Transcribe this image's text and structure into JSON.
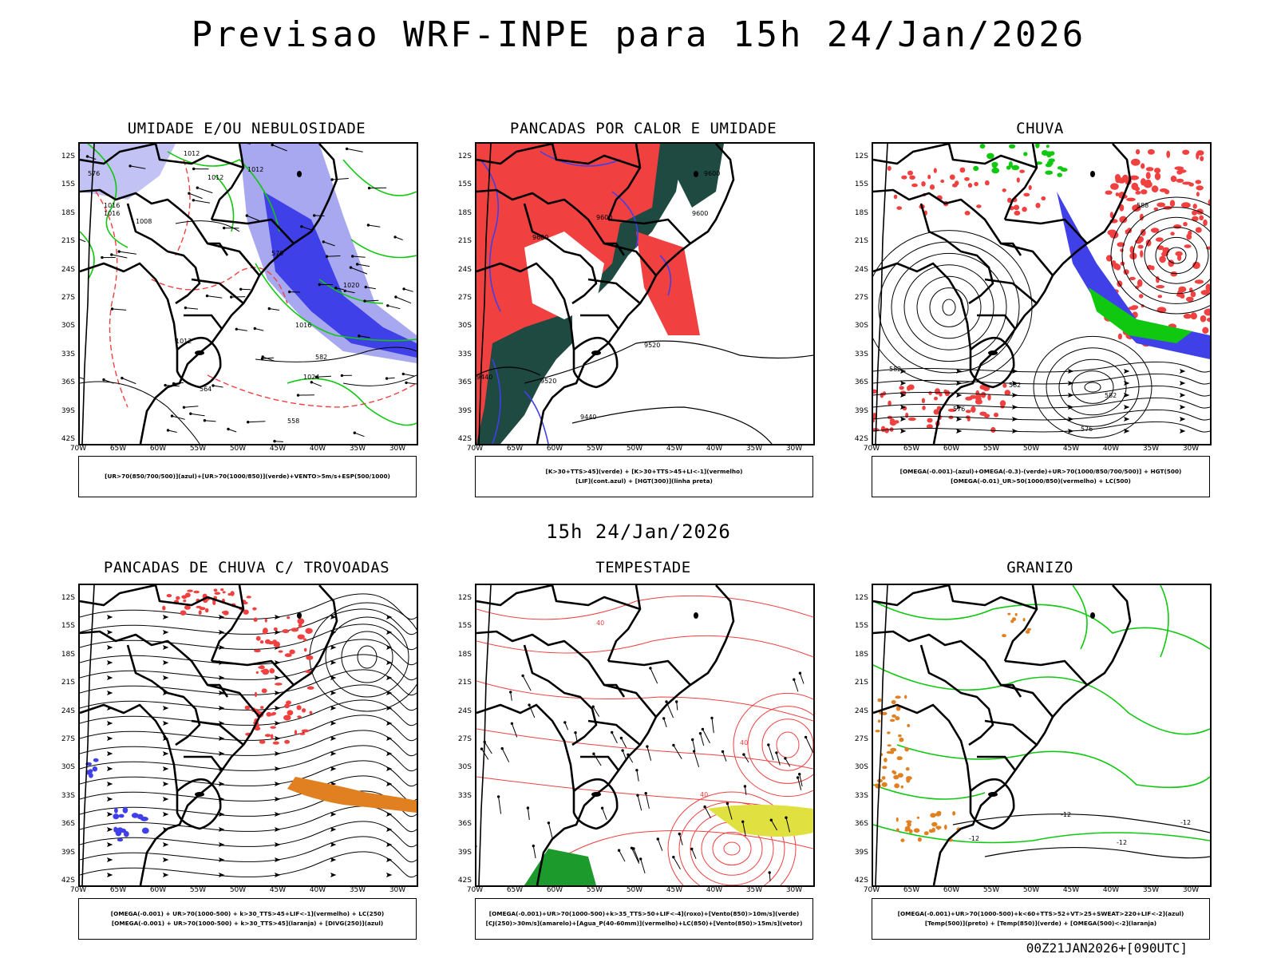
{
  "header": {
    "title": "Previsao WRF-INPE  para 15h 24/Jan/2026"
  },
  "mid": {
    "title": "15h 24/Jan/2026"
  },
  "footer": {
    "run": "00Z21JAN2026+[090UTC]"
  },
  "axes": {
    "lat": [
      "12S",
      "15S",
      "18S",
      "21S",
      "24S",
      "27S",
      "30S",
      "33S",
      "36S",
      "39S",
      "42S"
    ],
    "lon": [
      "70W",
      "65W",
      "60W",
      "55W",
      "50W",
      "45W",
      "40W",
      "35W",
      "30W"
    ]
  },
  "panels": [
    {
      "title": "UMIDADE E/OU NEBULOSIDADE",
      "legend": [
        "[UR>70(850/700/500)](azul)+[UR>70(1000/850)](verde)+VENTO>5m/s+ESP(500/1000)"
      ]
    },
    {
      "title": "PANCADAS POR CALOR E UMIDADE",
      "legend": [
        "[K>30+TTS>45](verde) + [K>30+TTS>45+LI<-1](vermelho)",
        "[LIF](cont.azul) + [HGT(300)](linha preta)"
      ]
    },
    {
      "title": "CHUVA",
      "legend": [
        "[OMEGA(-0.001)-(azul)+OMEGA(-0.3)-(verde)+UR>70(1000/850/700/500)] + HGT(500)",
        "[OMEGA(-0.01)_UR>50(1000/850)(vermelho) + LC(500)"
      ]
    },
    {
      "title": "PANCADAS DE CHUVA C/ TROVOADAS",
      "legend": [
        "[OMEGA(-0.001) + UR>70(1000-500) + k>30_TTS>45+LIF<-1](vermelho) + LC(250)",
        "[OMEGA(-0.001) + UR>70(1000-500) + k>30_TTS>45](laranja) + [DIVG(250)](azul)"
      ]
    },
    {
      "title": "TEMPESTADE",
      "legend": [
        "[OMEGA(-0.001)+UR>70(1000-500)+k>35_TTS>50+LIF<-4](roxo)+[Vento(850)>10m/s](verde)",
        "[CJ(250)>30m/s](amarelo)+[Agua_P(40-60mm)](vermelho)+LC(850)+[Vento(850)>15m/s](vetor)"
      ]
    },
    {
      "title": "GRANIZO",
      "legend": [
        "[OMEGA(-0.001)+UR>70(1000-500)+k<60+TTS>52+VT>25+SWEAT>220+LIF<-2](azul)",
        "[Temp(500)](preto) + [Temp(850)](verde) + [OMEGA(500)<-2](laranja)"
      ]
    }
  ],
  "contour_labels": {
    "p1": [
      "1012",
      "1012",
      "1012",
      "1016",
      "1016",
      "1008",
      "1020",
      "1024",
      "1016",
      "1012",
      "576",
      "570",
      "564",
      "558",
      "582"
    ],
    "p2": [
      "9600",
      "9600",
      "9600",
      "9520",
      "9440",
      "9440",
      "9520",
      "9600"
    ],
    "p3": [
      "588",
      "582",
      "582",
      "582",
      "576",
      "576"
    ],
    "p5": [
      "40",
      "40",
      "40"
    ],
    "p6": [
      "-12",
      "-12",
      "-12",
      "-12"
    ]
  },
  "colors": {
    "blue": "#4040e8",
    "lightblue": "#a8a8f0",
    "green": "#10c810",
    "red": "#f04040",
    "darkgreen": "#1e4a42",
    "orange": "#e08020",
    "yellow": "#e0e040",
    "black": "#000000"
  }
}
